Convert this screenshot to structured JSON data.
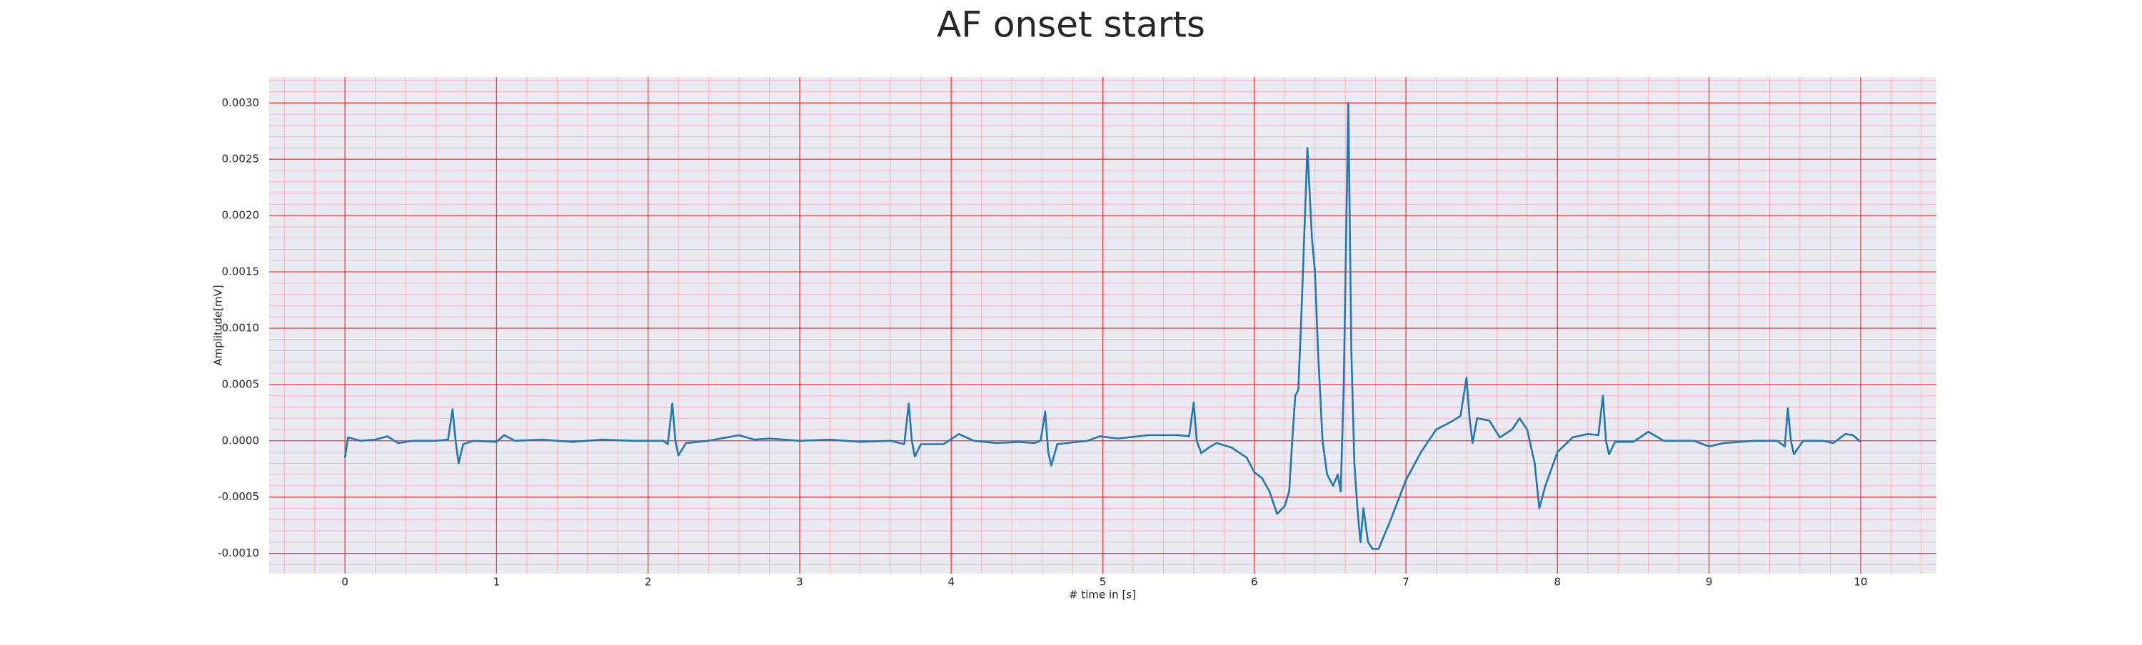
{
  "chart_data": {
    "type": "line",
    "title": "AF onset starts",
    "xlabel": "# time in [s]",
    "ylabel": "Amplitude[mV]",
    "x": [
      0,
      0.02,
      0.1,
      0.2,
      0.28,
      0.35,
      0.45,
      0.6,
      0.68,
      0.71,
      0.73,
      0.75,
      0.78,
      0.85,
      1.0,
      1.05,
      1.12,
      1.3,
      1.5,
      1.7,
      1.9,
      2.1,
      2.13,
      2.16,
      2.18,
      2.2,
      2.25,
      2.4,
      2.6,
      2.7,
      2.8,
      3.0,
      3.2,
      3.4,
      3.6,
      3.69,
      3.72,
      3.74,
      3.76,
      3.8,
      3.95,
      4.05,
      4.15,
      4.3,
      4.45,
      4.55,
      4.59,
      4.62,
      4.64,
      4.66,
      4.7,
      4.9,
      4.98,
      5.1,
      5.3,
      5.5,
      5.57,
      5.6,
      5.62,
      5.65,
      5.7,
      5.75,
      5.85,
      5.95,
      6.0,
      6.05,
      6.1,
      6.15,
      6.2,
      6.23,
      6.25,
      6.27,
      6.29,
      6.31,
      6.35,
      6.38,
      6.4,
      6.42,
      6.45,
      6.48,
      6.52,
      6.55,
      6.57,
      6.59,
      6.62,
      6.64,
      6.66,
      6.68,
      6.7,
      6.72,
      6.75,
      6.78,
      6.82,
      6.9,
      7.0,
      7.1,
      7.2,
      7.3,
      7.36,
      7.4,
      7.42,
      7.44,
      7.47,
      7.55,
      7.62,
      7.7,
      7.75,
      7.8,
      7.85,
      7.88,
      7.92,
      8.0,
      8.1,
      8.2,
      8.27,
      8.3,
      8.32,
      8.34,
      8.38,
      8.5,
      8.6,
      8.7,
      8.9,
      9.0,
      9.1,
      9.3,
      9.45,
      9.5,
      9.52,
      9.54,
      9.56,
      9.62,
      9.75,
      9.82,
      9.9,
      9.95,
      10.0
    ],
    "values": [
      -0.00015,
      3e-05,
      0.0,
      1e-05,
      4e-05,
      -2e-05,
      0.0,
      0.0,
      1e-05,
      0.00028,
      0.0,
      -0.0002,
      -3e-05,
      0.0,
      -1e-05,
      5e-05,
      0.0,
      1e-05,
      -1e-05,
      1e-05,
      0.0,
      0.0,
      -3e-05,
      0.00033,
      0.0,
      -0.00013,
      -2e-05,
      0.0,
      5e-05,
      1e-05,
      2e-05,
      0.0,
      1e-05,
      -1e-05,
      0.0,
      -3e-05,
      0.00033,
      0.0,
      -0.00014,
      -3e-05,
      -3e-05,
      6e-05,
      0.0,
      -2e-05,
      -1e-05,
      -2e-05,
      0.0,
      0.00026,
      -0.0001,
      -0.00022,
      -3e-05,
      0.0,
      4e-05,
      2e-05,
      5e-05,
      5e-05,
      4e-05,
      0.00034,
      0.0,
      -0.00011,
      -6e-05,
      -2e-05,
      -6e-05,
      -0.00015,
      -0.00028,
      -0.00033,
      -0.00045,
      -0.00065,
      -0.00058,
      -0.00045,
      0.0,
      0.0004,
      0.00045,
      0.0011,
      0.0026,
      0.0018,
      0.0015,
      0.0008,
      0.0,
      -0.0003,
      -0.0004,
      -0.0003,
      -0.00045,
      0.0005,
      0.003,
      0.0008,
      -0.0002,
      -0.0006,
      -0.0009,
      -0.0006,
      -0.0009,
      -0.00096,
      -0.00096,
      -0.0007,
      -0.00035,
      -0.0001,
      0.0001,
      0.00017,
      0.00022,
      0.00056,
      0.0002,
      -2e-05,
      0.0002,
      0.00018,
      3e-05,
      0.0001,
      0.0002,
      0.0001,
      -0.0002,
      -0.0006,
      -0.0004,
      -0.0001,
      3e-05,
      6e-05,
      5e-05,
      0.0004,
      0.0,
      -0.00012,
      -1e-05,
      -1e-05,
      8e-05,
      0.0,
      0.0,
      -5e-05,
      -2e-05,
      0.0,
      0.0,
      -5e-05,
      0.00029,
      0.0,
      -0.00012,
      0.0,
      0.0,
      -2e-05,
      6e-05,
      5e-05,
      -1e-05
    ],
    "color": "#1f77b4",
    "xlim": [
      -0.5,
      10.5
    ],
    "xticks": [
      0,
      1,
      2,
      3,
      4,
      5,
      6,
      7,
      8,
      9,
      10
    ],
    "ylim": [
      -0.00118,
      0.00323
    ],
    "yticks": [
      {
        "value": -0.001,
        "label": "-0.0010"
      },
      {
        "value": -0.0005,
        "label": "-0.0005"
      },
      {
        "value": 0,
        "label": "0.0000"
      },
      {
        "value": 0.0005,
        "label": "0.0005"
      },
      {
        "value": 0.001,
        "label": "0.0010"
      },
      {
        "value": 0.0015,
        "label": "0.0015"
      },
      {
        "value": 0.002,
        "label": "0.0020"
      },
      {
        "value": 0.0025,
        "label": "0.0025"
      },
      {
        "value": 0.003,
        "label": "0.0030"
      }
    ],
    "grid": true,
    "grid_color": "#ff0000",
    "minor_grid": true,
    "minor_grid_color": "#ffb0c0",
    "minor_grid_divisions": 5,
    "background": "#eaeaf2"
  }
}
